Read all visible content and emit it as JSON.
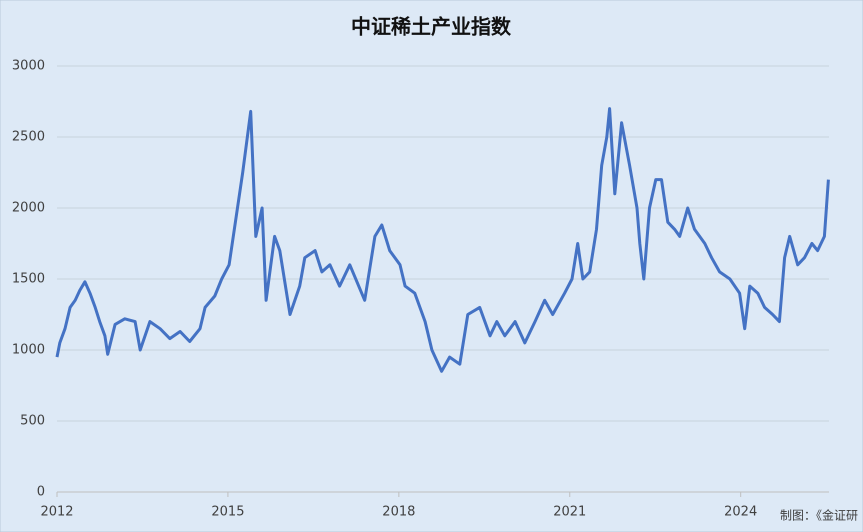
{
  "chart_data": {
    "type": "line",
    "title": "中证稀土产业指数",
    "source": "制图：《金证研",
    "x": [
      2012.0,
      2012.05,
      2012.14,
      2012.23,
      2012.32,
      2012.4,
      2012.49,
      2012.58,
      2012.67,
      2012.75,
      2012.84,
      2012.89,
      2013.02,
      2013.19,
      2013.37,
      2013.46,
      2013.63,
      2013.81,
      2013.98,
      2014.16,
      2014.33,
      2014.51,
      2014.6,
      2014.77,
      2014.89,
      2015.02,
      2015.26,
      2015.4,
      2015.49,
      2015.6,
      2015.67,
      2015.82,
      2015.91,
      2016.09,
      2016.26,
      2016.35,
      2016.53,
      2016.65,
      2016.79,
      2016.96,
      2017.14,
      2017.4,
      2017.58,
      2017.7,
      2017.84,
      2018.02,
      2018.11,
      2018.28,
      2018.46,
      2018.58,
      2018.75,
      2018.89,
      2019.07,
      2019.21,
      2019.42,
      2019.6,
      2019.72,
      2019.86,
      2020.04,
      2020.21,
      2020.39,
      2020.56,
      2020.7,
      2020.91,
      2021.04,
      2021.14,
      2021.23,
      2021.35,
      2021.47,
      2021.56,
      2021.65,
      2021.7,
      2021.79,
      2021.91,
      2022.05,
      2022.18,
      2022.23,
      2022.3,
      2022.4,
      2022.51,
      2022.61,
      2022.72,
      2022.84,
      2022.93,
      2023.07,
      2023.19,
      2023.37,
      2023.49,
      2023.63,
      2023.81,
      2023.98,
      2024.07,
      2024.16,
      2024.3,
      2024.42,
      2024.56,
      2024.68,
      2024.77,
      2024.86,
      2025.0,
      2025.12,
      2025.25,
      2025.35,
      2025.47,
      2025.54
    ],
    "series": [
      {
        "name": "中证稀土产业指数",
        "color": "#4472c4",
        "values": [
          950,
          1050,
          1150,
          1300,
          1350,
          1420,
          1480,
          1400,
          1300,
          1200,
          1100,
          970,
          1180,
          1220,
          1200,
          1000,
          1200,
          1150,
          1080,
          1130,
          1060,
          1150,
          1300,
          1380,
          1500,
          1600,
          2250,
          2680,
          1800,
          2000,
          1350,
          1800,
          1700,
          1250,
          1450,
          1650,
          1700,
          1550,
          1600,
          1450,
          1600,
          1350,
          1800,
          1880,
          1700,
          1600,
          1450,
          1400,
          1200,
          1000,
          850,
          950,
          900,
          1250,
          1300,
          1100,
          1200,
          1100,
          1200,
          1050,
          1200,
          1350,
          1250,
          1400,
          1500,
          1750,
          1500,
          1550,
          1850,
          2300,
          2500,
          2700,
          2100,
          2600,
          2300,
          2000,
          1750,
          1500,
          2000,
          2200,
          2200,
          1900,
          1850,
          1800,
          2000,
          1850,
          1750,
          1650,
          1550,
          1500,
          1400,
          1150,
          1450,
          1400,
          1300,
          1250,
          1200,
          1650,
          1800,
          1600,
          1650,
          1750,
          1700,
          1800,
          2200
        ]
      }
    ],
    "xlim": [
      2012,
      2025.55
    ],
    "xticks": [
      2012,
      2015,
      2018,
      2021,
      2024
    ],
    "ylim": [
      0,
      3000
    ],
    "yticks": [
      0,
      500,
      1000,
      1500,
      2000,
      2500,
      3000
    ],
    "grid": true
  }
}
